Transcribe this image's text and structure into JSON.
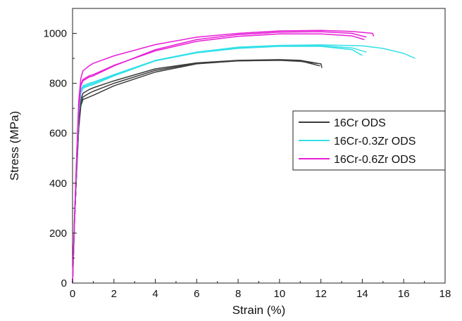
{
  "chart_data": {
    "type": "line",
    "title": "",
    "xlabel": "Strain (%)",
    "ylabel": "Stress (MPa)",
    "xlim": [
      0,
      18
    ],
    "ylim": [
      0,
      1100
    ],
    "xticks": [
      0,
      2,
      4,
      6,
      8,
      10,
      12,
      14,
      16,
      18
    ],
    "yticks": [
      0,
      200,
      400,
      600,
      800,
      1000
    ],
    "grid": false,
    "legend_position": "right",
    "legend": [
      {
        "label": "16Cr ODS",
        "color": "#3c3c3c"
      },
      {
        "label": "16Cr-0.3Zr ODS",
        "color": "#33e0e8"
      },
      {
        "label": "16Cr-0.6Zr ODS",
        "color": "#e81ed6"
      }
    ],
    "series": [
      {
        "name": "16Cr ODS",
        "color": "#3c3c3c",
        "x": [
          0,
          0.1,
          0.2,
          0.3,
          0.4,
          0.5,
          0.8,
          1,
          2,
          4,
          6,
          8,
          10,
          11,
          12,
          12.05
        ],
        "y": [
          0,
          250,
          450,
          620,
          710,
          735,
          745,
          752,
          790,
          845,
          878,
          890,
          892,
          888,
          878,
          862
        ]
      },
      {
        "name": "16Cr ODS",
        "color": "#3c3c3c",
        "x": [
          0,
          0.1,
          0.2,
          0.3,
          0.4,
          0.5,
          0.8,
          1,
          2,
          4,
          6,
          8,
          10,
          11,
          11.95
        ],
        "y": [
          0,
          250,
          450,
          630,
          720,
          745,
          760,
          768,
          800,
          852,
          880,
          890,
          893,
          890,
          870
        ]
      },
      {
        "name": "16Cr ODS",
        "color": "#3c3c3c",
        "x": [
          0,
          0.1,
          0.2,
          0.3,
          0.4,
          0.5,
          0.8,
          1,
          2,
          4,
          6,
          8,
          10,
          11,
          11.85
        ],
        "y": [
          0,
          250,
          460,
          640,
          735,
          760,
          775,
          782,
          810,
          858,
          882,
          892,
          895,
          892,
          880
        ]
      },
      {
        "name": "16Cr-0.3Zr ODS",
        "color": "#33e0e8",
        "x": [
          0,
          0.1,
          0.2,
          0.3,
          0.4,
          0.5,
          0.8,
          1,
          2,
          4,
          6,
          8,
          10,
          12,
          14,
          15,
          16,
          16.55
        ],
        "y": [
          0,
          260,
          480,
          680,
          760,
          780,
          790,
          795,
          830,
          890,
          925,
          945,
          952,
          954,
          950,
          940,
          920,
          900
        ]
      },
      {
        "name": "16Cr-0.3Zr ODS",
        "color": "#33e0e8",
        "x": [
          0,
          0.1,
          0.2,
          0.3,
          0.4,
          0.5,
          0.8,
          1,
          2,
          4,
          6,
          8,
          10,
          12,
          13.5,
          14.2
        ],
        "y": [
          0,
          260,
          480,
          690,
          770,
          790,
          800,
          805,
          835,
          892,
          925,
          943,
          950,
          950,
          942,
          925
        ]
      },
      {
        "name": "16Cr-0.3Zr ODS",
        "color": "#33e0e8",
        "x": [
          0,
          0.1,
          0.2,
          0.3,
          0.4,
          0.5,
          0.8,
          1,
          2,
          4,
          6,
          8,
          10,
          12,
          13.5,
          14.0
        ],
        "y": [
          0,
          260,
          480,
          680,
          765,
          785,
          795,
          800,
          832,
          890,
          922,
          940,
          948,
          948,
          935,
          912
        ]
      },
      {
        "name": "16Cr-0.6Zr ODS",
        "color": "#e81ed6",
        "x": [
          0,
          0.1,
          0.2,
          0.3,
          0.4,
          0.5,
          0.8,
          1,
          2,
          4,
          6,
          8,
          10,
          12,
          13.5,
          14.5,
          14.55
        ],
        "y": [
          0,
          270,
          520,
          730,
          820,
          850,
          870,
          880,
          910,
          955,
          985,
          1000,
          1010,
          1012,
          1008,
          1000,
          988
        ]
      },
      {
        "name": "16Cr-0.6Zr ODS",
        "color": "#e81ed6",
        "x": [
          0,
          0.1,
          0.2,
          0.3,
          0.4,
          0.5,
          0.8,
          1,
          2,
          4,
          6,
          8,
          10,
          12,
          13.5,
          14.2
        ],
        "y": [
          0,
          270,
          500,
          700,
          790,
          810,
          825,
          830,
          870,
          935,
          975,
          995,
          1005,
          1007,
          1000,
          985
        ]
      },
      {
        "name": "16Cr-0.6Zr ODS",
        "color": "#e81ed6",
        "x": [
          0,
          0.1,
          0.2,
          0.3,
          0.4,
          0.5,
          0.8,
          1,
          2,
          4,
          6,
          8,
          10,
          12,
          13.5,
          14.1
        ],
        "y": [
          0,
          270,
          500,
          705,
          795,
          815,
          830,
          835,
          872,
          930,
          968,
          988,
          998,
          998,
          990,
          975
        ]
      }
    ]
  }
}
